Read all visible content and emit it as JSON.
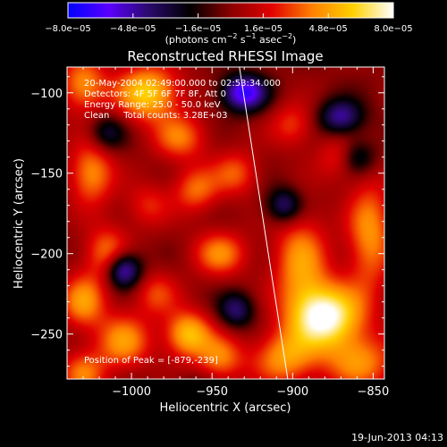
{
  "chart_data": {
    "type": "heatmap",
    "title": "Reconstructed RHESSI Image",
    "xlabel": "Heliocentric X (arcsec)",
    "ylabel": "Heliocentric Y (arcsec)",
    "xlim": [
      -1040,
      -843
    ],
    "ylim": [
      -278,
      -84
    ],
    "x_ticks": [
      -1000,
      -950,
      -900,
      -850
    ],
    "x_tick_labels": [
      "−1000",
      "−950",
      "−900",
      "−850"
    ],
    "y_ticks": [
      -100,
      -150,
      -200,
      -250
    ],
    "y_tick_labels": [
      "−100",
      "−150",
      "−200",
      "−250"
    ],
    "colorbar": {
      "vmin": -8e-05,
      "vmax": 8e-05,
      "tick_values": [
        -8e-05,
        -4.8e-05,
        -1.6e-05,
        1.6e-05,
        4.8e-05,
        8e-05
      ],
      "tick_labels": [
        "−8.0e−05",
        "−4.8e−05",
        "−1.6e−05",
        "1.6e−05",
        "4.8e−05",
        "8.0e−05"
      ],
      "units_prefix": "(photons cm",
      "units_exp1": "−2",
      "units_mid": " s",
      "units_exp2": "−1",
      "units_mid2": " asec",
      "units_exp3": "−2",
      "units_suffix": ")",
      "colormap": [
        "#0000ff",
        "#5a00ff",
        "#2a0a6b",
        "#000000",
        "#8b0000",
        "#e00000",
        "#ff8000",
        "#ffd000",
        "#ffffff"
      ]
    },
    "annotations": [
      "20-May-2004 02:49:00.000 to 02:53:34.000",
      "Detectors: 4F 5F 6F 7F 8F, Att 0",
      "Energy Range: 25.0 - 50.0 keV",
      "Clean     Total counts: 3.28E+03"
    ],
    "peak_label": "Position of Peak = [-879,-239]",
    "peak": [
      -879,
      -239
    ],
    "limb_line": [
      [
        -933,
        -84
      ],
      [
        -903,
        -278
      ]
    ],
    "sources": [
      {
        "x": -879,
        "y": -239,
        "amp": 1.0,
        "sx": 16,
        "sy": 14
      },
      {
        "x": -895,
        "y": -205,
        "amp": 0.55,
        "sx": 12,
        "sy": 22
      },
      {
        "x": -852,
        "y": -188,
        "amp": 0.55,
        "sx": 10,
        "sy": 24
      },
      {
        "x": -905,
        "y": -265,
        "amp": 0.55,
        "sx": 14,
        "sy": 12
      },
      {
        "x": -858,
        "y": -268,
        "amp": 0.5,
        "sx": 16,
        "sy": 12
      },
      {
        "x": -990,
        "y": -100,
        "amp": 0.75,
        "sx": 14,
        "sy": 12
      },
      {
        "x": -1030,
        "y": -95,
        "amp": 0.55,
        "sx": 10,
        "sy": 12
      },
      {
        "x": -1025,
        "y": -150,
        "amp": 0.55,
        "sx": 10,
        "sy": 14
      },
      {
        "x": -1015,
        "y": -200,
        "amp": 0.5,
        "sx": 10,
        "sy": 12
      },
      {
        "x": -1030,
        "y": -230,
        "amp": 0.55,
        "sx": 10,
        "sy": 12
      },
      {
        "x": -1005,
        "y": -255,
        "amp": 0.55,
        "sx": 12,
        "sy": 12
      },
      {
        "x": -1030,
        "y": -275,
        "amp": 0.45,
        "sx": 10,
        "sy": 10
      },
      {
        "x": -965,
        "y": -250,
        "amp": 0.7,
        "sx": 10,
        "sy": 10
      },
      {
        "x": -945,
        "y": -265,
        "amp": 0.5,
        "sx": 10,
        "sy": 10
      },
      {
        "x": -945,
        "y": -200,
        "amp": 0.5,
        "sx": 12,
        "sy": 10
      },
      {
        "x": -960,
        "y": -160,
        "amp": 0.45,
        "sx": 10,
        "sy": 10
      },
      {
        "x": -935,
        "y": -150,
        "amp": 0.4,
        "sx": 10,
        "sy": 10
      },
      {
        "x": -970,
        "y": -128,
        "amp": 0.45,
        "sx": 12,
        "sy": 10
      },
      {
        "x": -990,
        "y": -170,
        "amp": 0.3,
        "sx": 10,
        "sy": 10
      },
      {
        "x": -985,
        "y": -225,
        "amp": 0.35,
        "sx": 10,
        "sy": 10
      },
      {
        "x": -870,
        "y": -140,
        "amp": 0.35,
        "sx": 10,
        "sy": 10
      },
      {
        "x": -900,
        "y": -120,
        "amp": 0.35,
        "sx": 10,
        "sy": 10
      },
      {
        "x": -1005,
        "y": -210,
        "amp": -0.8,
        "sx": 8,
        "sy": 8
      },
      {
        "x": -930,
        "y": -100,
        "amp": -0.85,
        "sx": 10,
        "sy": 8
      },
      {
        "x": -905,
        "y": -170,
        "amp": -0.55,
        "sx": 8,
        "sy": 8
      },
      {
        "x": -870,
        "y": -115,
        "amp": -0.6,
        "sx": 10,
        "sy": 8
      },
      {
        "x": -860,
        "y": -140,
        "amp": -0.5,
        "sx": 8,
        "sy": 8
      },
      {
        "x": -935,
        "y": -235,
        "amp": -0.5,
        "sx": 8,
        "sy": 8
      },
      {
        "x": -960,
        "y": -290,
        "amp": -0.4,
        "sx": 8,
        "sy": 8
      },
      {
        "x": -1015,
        "y": -125,
        "amp": -0.4,
        "sx": 8,
        "sy": 8
      }
    ]
  },
  "footer": {
    "timestamp": "19-Jun-2013 04:13"
  }
}
